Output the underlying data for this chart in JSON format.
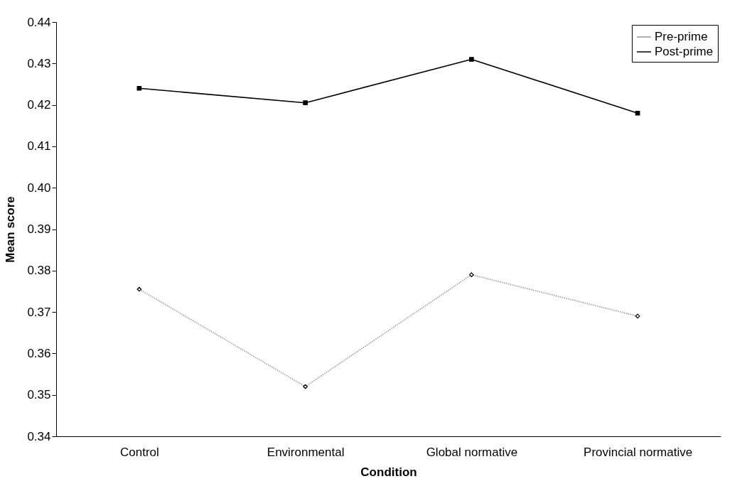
{
  "chart_data": {
    "type": "line",
    "xlabel": "Condition",
    "ylabel": "Mean score",
    "categories": [
      "Control",
      "Environmental",
      "Global normative",
      "Provincial normative"
    ],
    "series": [
      {
        "name": "Pre-prime",
        "color": "#999999",
        "values": [
          0.3755,
          0.352,
          0.379,
          0.369
        ],
        "marker": "diamond",
        "line_style": "dotted"
      },
      {
        "name": "Post-prime",
        "color": "#000000",
        "values": [
          0.424,
          0.4205,
          0.431,
          0.418
        ],
        "marker": "square",
        "line_style": "solid"
      }
    ],
    "ylim": [
      0.34,
      0.44
    ],
    "yticks": [
      0.34,
      0.35,
      0.36,
      0.37,
      0.38,
      0.39,
      {
        "value": 0.4,
        "label": "0.40"
      },
      0.41,
      0.42,
      0.43,
      0.44
    ],
    "grid": false,
    "legend": "top right"
  }
}
